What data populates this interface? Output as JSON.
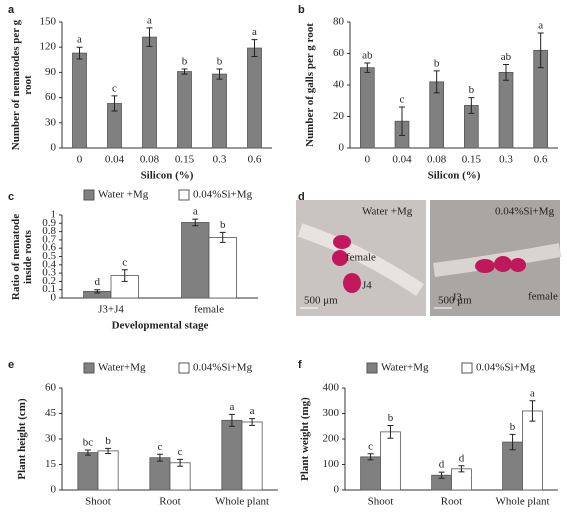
{
  "chart_data": [
    {
      "panel": "a",
      "type": "bar",
      "ylabel": "Number of nematodes per g root",
      "xlabel": "Silicon (%)",
      "categories": [
        "0",
        "0.04",
        "0.08",
        "0.15",
        "0.3",
        "0.6"
      ],
      "values": [
        113,
        53,
        132,
        91,
        88,
        119
      ],
      "errors": [
        7,
        9,
        11,
        3,
        6,
        10
      ],
      "letters": [
        "a",
        "c",
        "a",
        "b",
        "b",
        "a"
      ],
      "color": "#808080",
      "ylim": [
        0,
        150
      ],
      "yticks": [
        0,
        30,
        60,
        90,
        120,
        150
      ]
    },
    {
      "panel": "b",
      "type": "bar",
      "ylabel": "Number of galls per g root",
      "xlabel": "Silicon (%)",
      "categories": [
        "0",
        "0.04",
        "0.08",
        "0.15",
        "0.3",
        "0.6"
      ],
      "values": [
        51,
        17,
        42,
        27,
        48,
        62
      ],
      "errors": [
        3,
        9,
        7,
        5,
        5,
        11
      ],
      "letters": [
        "ab",
        "c",
        "b",
        "b",
        "ab",
        "a"
      ],
      "color": "#808080",
      "ylim": [
        0,
        80
      ],
      "yticks": [
        0,
        20,
        40,
        60,
        80
      ]
    },
    {
      "panel": "c",
      "type": "bar",
      "ylabel": "Ratio of nematode inside roots",
      "xlabel": "Developmental stage",
      "categories": [
        "J3+J4",
        "female"
      ],
      "series": [
        {
          "name": "Water +Mg",
          "color": "#808080",
          "values": [
            0.08,
            0.91
          ],
          "errors": [
            0.02,
            0.04
          ],
          "letters": [
            "d",
            "a"
          ]
        },
        {
          "name": "0.04%Si+Mg",
          "color": "#ffffff",
          "values": [
            0.27,
            0.73
          ],
          "errors": [
            0.07,
            0.06
          ],
          "letters": [
            "c",
            "b"
          ]
        }
      ],
      "ylim": [
        0,
        1
      ],
      "yticks": [
        0,
        0.1,
        0.2,
        0.3,
        0.4,
        0.5,
        0.6,
        0.7,
        0.8,
        0.9,
        1
      ]
    },
    {
      "panel": "d",
      "type": "image",
      "annotations": [
        "Water +Mg",
        "female",
        "J4",
        "500 μm",
        "0.04%Si+Mg",
        "J3",
        "female",
        "500 μm"
      ]
    },
    {
      "panel": "e",
      "type": "bar",
      "ylabel": "Plant height (cm)",
      "categories": [
        "Shoot",
        "Root",
        "Whole plant"
      ],
      "series": [
        {
          "name": "Water+Mg",
          "color": "#808080",
          "values": [
            22,
            19,
            41
          ],
          "errors": [
            1.5,
            2,
            3.5
          ],
          "letters": [
            "bc",
            "c",
            "a"
          ]
        },
        {
          "name": "0.04%Si+Mg",
          "color": "#ffffff",
          "values": [
            23,
            16,
            40
          ],
          "errors": [
            1.5,
            2,
            2
          ],
          "letters": [
            "b",
            "c",
            "a"
          ]
        }
      ],
      "ylim": [
        0,
        60
      ],
      "yticks": [
        0,
        15,
        30,
        45,
        60
      ]
    },
    {
      "panel": "f",
      "type": "bar",
      "ylabel": "Plant weight (mg)",
      "categories": [
        "Shoot",
        "Root",
        "Whole plant"
      ],
      "series": [
        {
          "name": "Water+Mg",
          "color": "#808080",
          "values": [
            130,
            58,
            188
          ],
          "errors": [
            12,
            12,
            30
          ],
          "letters": [
            "c",
            "d",
            "b"
          ]
        },
        {
          "name": "0.04%Si+Mg",
          "color": "#ffffff",
          "values": [
            228,
            83,
            310
          ],
          "errors": [
            25,
            12,
            40
          ],
          "letters": [
            "b",
            "d",
            "a"
          ]
        }
      ],
      "ylim": [
        0,
        400
      ],
      "yticks": [
        0,
        100,
        200,
        300,
        400
      ]
    }
  ]
}
